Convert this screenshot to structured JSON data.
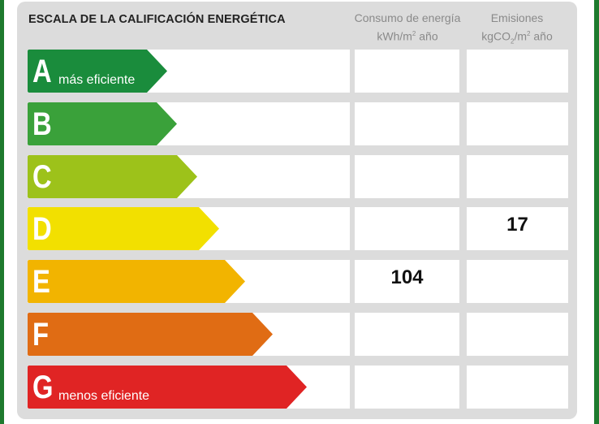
{
  "title": "ESCALA DE LA CALIFICACIÓN ENERGÉTICA",
  "columns": {
    "energy": {
      "line1": "Consumo de energía",
      "unit_pre": "kWh/m",
      "unit_sup": "2",
      "unit_post": " año"
    },
    "emissions": {
      "line1": "Emisiones",
      "unit_pre": "kgCO",
      "unit_sub": "2",
      "unit_mid": "/m",
      "unit_sup": "2",
      "unit_post": " año"
    }
  },
  "ratings": [
    {
      "letter": "A",
      "label": "más eficiente",
      "color": "#1a8c3c"
    },
    {
      "letter": "B",
      "label": "",
      "color": "#3aa13a"
    },
    {
      "letter": "C",
      "label": "",
      "color": "#9dc21a"
    },
    {
      "letter": "D",
      "label": "",
      "color": "#f2e000"
    },
    {
      "letter": "E",
      "label": "",
      "color": "#f2b400"
    },
    {
      "letter": "F",
      "label": "",
      "color": "#e06c14"
    },
    {
      "letter": "G",
      "label": "menos eficiente",
      "color": "#e02424"
    }
  ],
  "values": {
    "energy": {
      "rating": "E",
      "value": "104"
    },
    "emissions": {
      "rating": "D",
      "value": "17"
    }
  }
}
